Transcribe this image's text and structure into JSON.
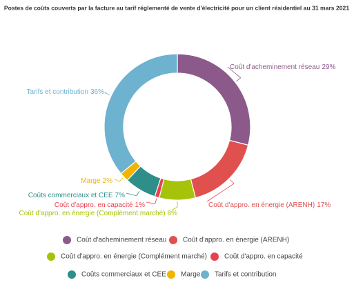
{
  "chart_data": {
    "type": "donut",
    "title": "Postes de coûts couverts par la facture au tarif réglementé de vente d'électricité pour un client résidentiel au 31 mars 2021",
    "categories": [
      "Coût d'acheminement réseau",
      "Coût d'appro. en énergie (ARENH)",
      "Coût d'appro. en énergie (Complément marché)",
      "Coût d'appro. en capacité",
      "Coûts commerciaux et CEE",
      "Marge",
      "Tarifs et contribution"
    ],
    "values": [
      29,
      17,
      8,
      1,
      7,
      2,
      36
    ],
    "value_labels": [
      "29%",
      "17%",
      "8%",
      "1%",
      "7%",
      "2%",
      "36%"
    ],
    "colors": [
      "#8c5a8a",
      "#e0504f",
      "#a6c30a",
      "#e8414e",
      "#2e8e89",
      "#f2b400",
      "#6db2cf"
    ]
  }
}
